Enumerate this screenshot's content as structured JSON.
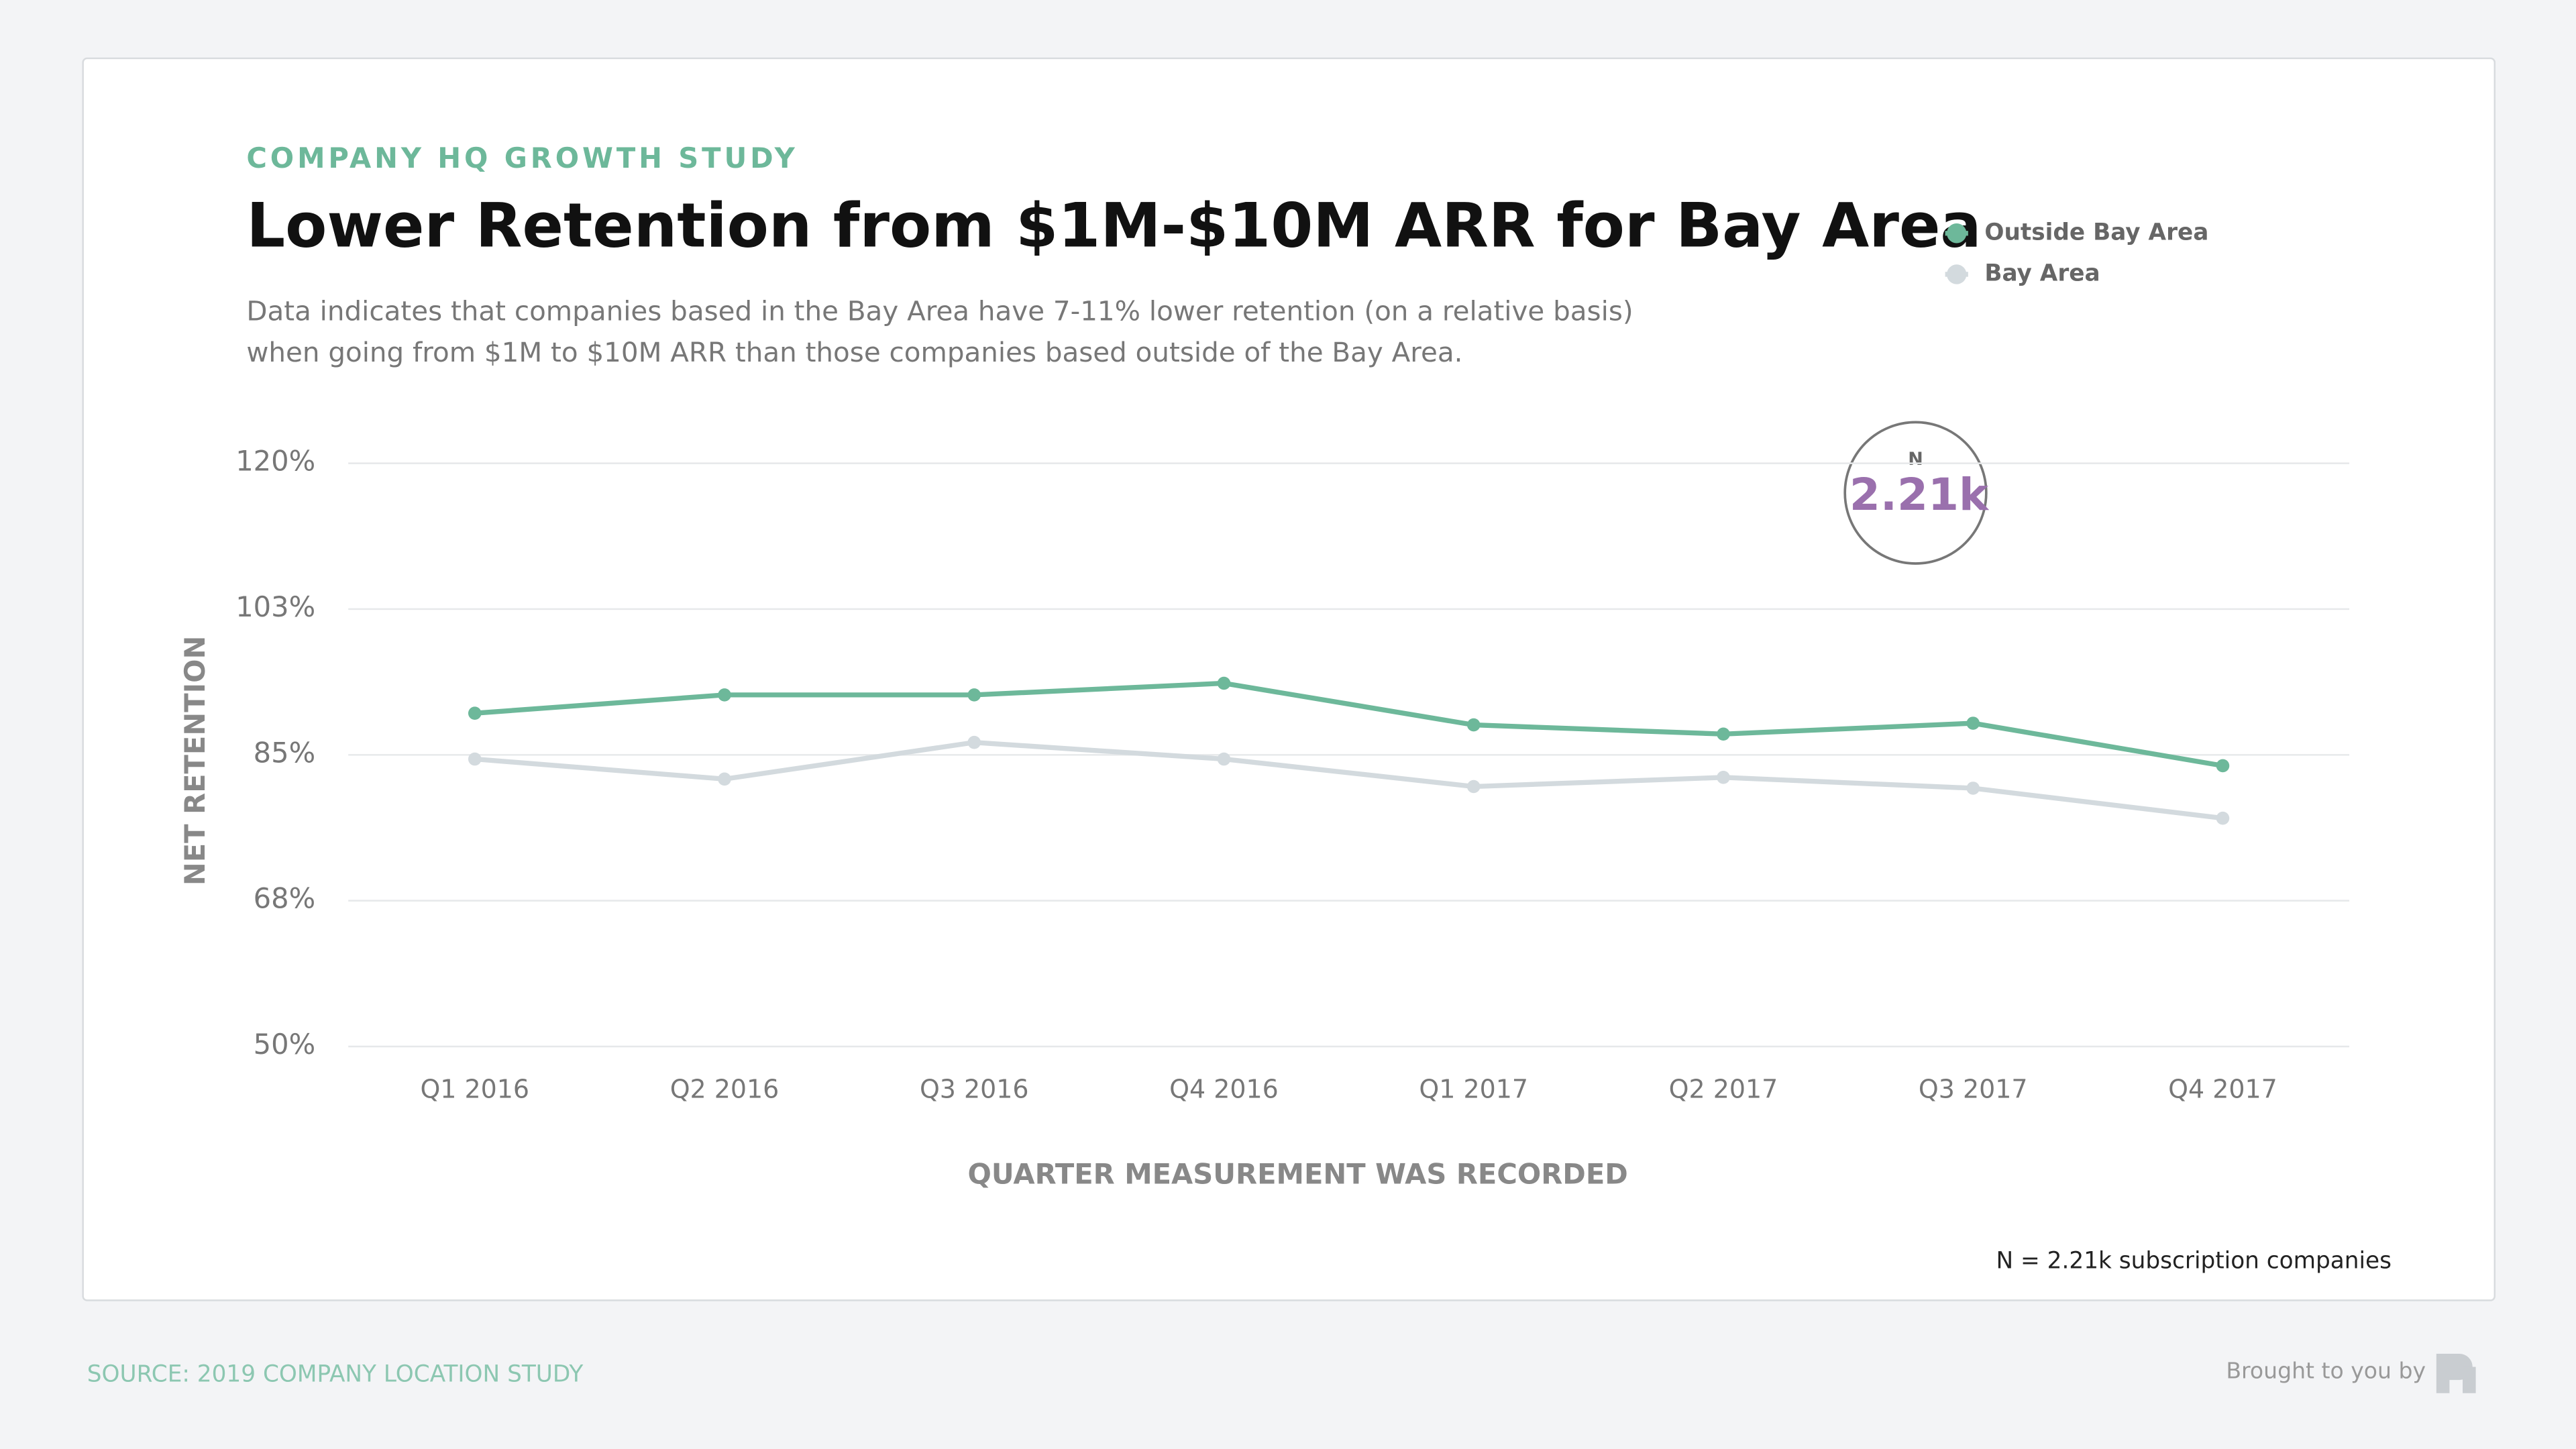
{
  "kicker": "COMPANY HQ GROWTH STUDY",
  "chart_data": {
    "type": "line",
    "title": "Lower Retention from $1M-$10M ARR for Bay Area",
    "subtitle": "Data indicates that companies based in the Bay Area have 7-11% lower retention (on a relative basis) when going from $1M to $10M ARR than those companies based outside of the Bay Area.",
    "x_label": "QUARTER MEASUREMENT WAS RECORDED",
    "y_label": "NET RETENTION",
    "categories": [
      "Q1 2016",
      "Q2 2016",
      "Q3 2016",
      "Q4 2016",
      "Q1 2017",
      "Q2 2017",
      "Q3 2017",
      "Q4 2017"
    ],
    "series": [
      {
        "name": "Outside Bay Area",
        "color": "#6db89a",
        "values": [
          90,
          92.2,
          92.2,
          93.6,
          88.6,
          87.5,
          88.8,
          83.7
        ]
      },
      {
        "name": "Bay Area",
        "color": "#d3dade",
        "values": [
          84.5,
          82.1,
          86.5,
          84.5,
          81.2,
          82.3,
          81.0,
          77.4
        ]
      }
    ],
    "ylim": [
      50,
      120
    ],
    "yticks": [
      {
        "value": 50,
        "label": "50%"
      },
      {
        "value": 67.5,
        "label": "68%"
      },
      {
        "value": 85,
        "label": "85%"
      },
      {
        "value": 102.5,
        "label": "103%"
      },
      {
        "value": 120,
        "label": "120%"
      }
    ],
    "grid": true
  },
  "badge": {
    "label": "N",
    "value": "2.21k"
  },
  "footnote": "N = 2.21k subscription companies",
  "source": "SOURCE: 2019 COMPANY LOCATION STUDY",
  "credit": "Brought to you by"
}
